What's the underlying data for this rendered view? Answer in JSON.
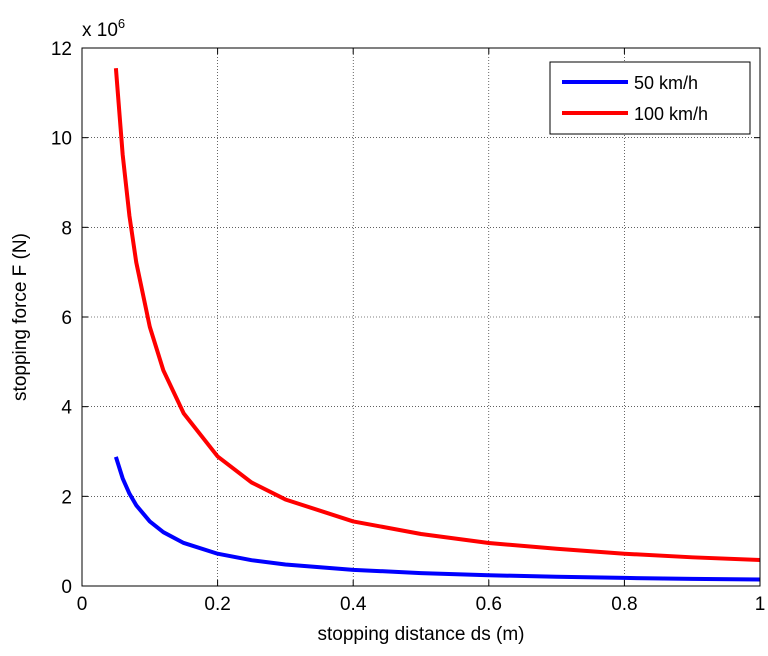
{
  "chart_data": {
    "type": "line",
    "title": "",
    "xlabel": "stopping distance ds  (m)",
    "ylabel": "stopping force F  (N)",
    "y_exponent_base": "x 10",
    "y_exponent_power": "6",
    "xlim": [
      0,
      1
    ],
    "ylim": [
      0,
      12
    ],
    "x_ticks": [
      0,
      0.2,
      0.4,
      0.6,
      0.8,
      1
    ],
    "x_tick_labels": [
      "0",
      "0.2",
      "0.4",
      "0.6",
      "0.8",
      "1"
    ],
    "y_ticks": [
      0,
      2,
      4,
      6,
      8,
      10,
      12
    ],
    "y_tick_labels": [
      "0",
      "2",
      "4",
      "6",
      "8",
      "10",
      "12"
    ],
    "grid": true,
    "legend_position": "top-right",
    "series": [
      {
        "name": "50 km/h",
        "color": "#0000ff",
        "x": [
          0.05,
          0.06,
          0.07,
          0.08,
          0.1,
          0.12,
          0.15,
          0.2,
          0.25,
          0.3,
          0.4,
          0.5,
          0.6,
          0.7,
          0.8,
          0.9,
          1.0
        ],
        "y": [
          2.88,
          2.4,
          2.06,
          1.8,
          1.44,
          1.2,
          0.96,
          0.72,
          0.576,
          0.48,
          0.36,
          0.288,
          0.24,
          0.206,
          0.18,
          0.16,
          0.144
        ]
      },
      {
        "name": "100 km/h",
        "color": "#ff0000",
        "x": [
          0.05,
          0.06,
          0.07,
          0.08,
          0.1,
          0.12,
          0.15,
          0.2,
          0.25,
          0.3,
          0.4,
          0.5,
          0.6,
          0.7,
          0.8,
          0.9,
          1.0
        ],
        "y": [
          11.55,
          9.62,
          8.25,
          7.22,
          5.78,
          4.81,
          3.85,
          2.89,
          2.31,
          1.93,
          1.44,
          1.16,
          0.96,
          0.83,
          0.72,
          0.64,
          0.58
        ]
      }
    ]
  }
}
